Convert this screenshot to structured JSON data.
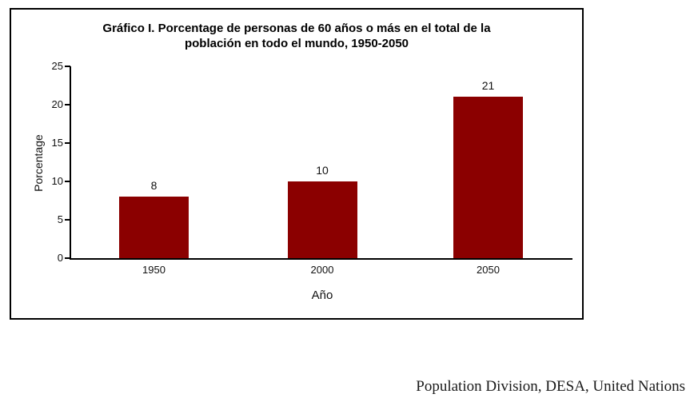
{
  "chart": {
    "title_line1": "Gráfico I. Porcentage de personas de 60 años o más en el total de la",
    "title_line2": "población en todo el mundo, 1950-2050",
    "ylabel": "Porcentage",
    "xlabel": "Año"
  },
  "chart_data": {
    "type": "bar",
    "title": "Gráfico I. Porcentage de personas de 60 años o más en el total de la población en todo el mundo, 1950-2050",
    "categories": [
      "1950",
      "2000",
      "2050"
    ],
    "values": [
      8,
      10,
      21
    ],
    "data_labels": [
      "8",
      "10",
      "21"
    ],
    "xlabel": "Año",
    "ylabel": "Porcentage",
    "ylim": [
      0,
      25
    ],
    "yticks": [
      0,
      5,
      10,
      15,
      20,
      25
    ],
    "bar_color": "#8B0000",
    "grid": false,
    "legend": false
  },
  "footer": {
    "credit": "Population Division, DESA, United Nations"
  }
}
